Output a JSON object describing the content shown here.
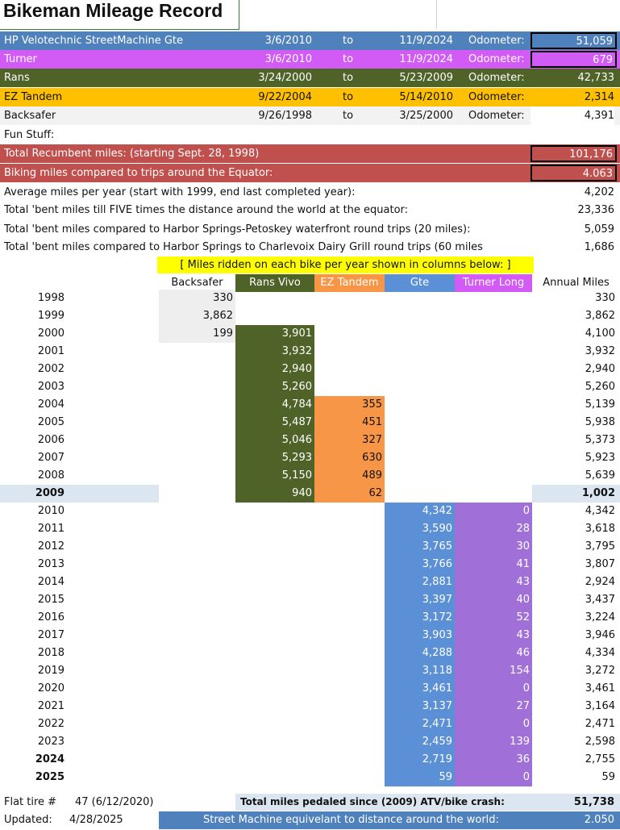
{
  "title": "Bikeman Mileage Record",
  "bikes": [
    {
      "name": "HP Velotechnic StreetMachine Gte",
      "start": "3/6/2010",
      "to": "to",
      "end": "11/9/2024",
      "odo_label": "Odometer:",
      "odo": "51,059",
      "bg": "#4f81bd",
      "odo_bg": "#4f81bd",
      "fg": "#ffffff"
    },
    {
      "name": "Turner",
      "start": "3/6/2010",
      "to": "to",
      "end": "11/9/2024",
      "odo_label": "Odometer:",
      "odo": "679",
      "bg": "#d35bf5",
      "odo_bg": "#d35bf5",
      "fg": "#ffffff"
    },
    {
      "name": "Rans",
      "start": "3/24/2000",
      "to": "to",
      "end": "5/23/2009",
      "odo_label": "Odometer:",
      "odo": "42,733",
      "bg": "#4f6228",
      "odo_bg": "#4f6228",
      "fg": "#ffffff"
    },
    {
      "name": "EZ Tandem",
      "start": "9/22/2004",
      "to": "to",
      "end": "5/14/2010",
      "odo_label": "Odometer:",
      "odo": "2,314",
      "bg": "#ffc000",
      "odo_bg": "#ffc000",
      "fg": "#111111"
    },
    {
      "name": "Backsafer",
      "start": "9/26/1998",
      "to": "to",
      "end": "3/25/2000",
      "odo_label": "Odometer:",
      "odo": "4,391",
      "bg": "#f2f2f2",
      "odo_bg": "#ffffff",
      "fg": "#111111"
    }
  ],
  "fun_stuff": "Fun Stuff:",
  "totals_red": [
    {
      "label": "Total Recumbent miles: (starting Sept. 28, 1998)",
      "value": "101,176"
    },
    {
      "label": "Biking miles compared to trips around the Equator:",
      "value": "4.063"
    }
  ],
  "stats": [
    {
      "label": "Average miles per year (start with 1999, end last completed year):",
      "value": "4,202"
    },
    {
      "label": "Total 'bent miles till FIVE times the distance around the world at the equator:",
      "value": "23,336"
    },
    {
      "label": "Total 'bent miles compared to Harbor Springs-Petoskey waterfront round trips (20 miles):",
      "value": "5,059"
    },
    {
      "label": "Total 'bent miles compared to Harbor Springs to Charlevoix Dairy Grill round trips (60 miles",
      "value": "1,686"
    }
  ],
  "banner": "[ Miles ridden on each bike per year shown in columns below: ]",
  "headers": [
    "Backsafer",
    "Rans Vivo",
    "EZ Tandem",
    "Gte",
    "Turner Long",
    "Annual Miles"
  ],
  "colors": {
    "backsafer": "#eeeeee",
    "rans": "#4f6228",
    "ez": "#f79646",
    "gte": "#5b8fd6",
    "turner": "#a070d8",
    "red": "#c0504d",
    "yellow": "#ffff00",
    "highlight": "#dce6f1"
  },
  "years": [
    {
      "year": "1998",
      "backsafer": "330",
      "rans": "",
      "ez": "",
      "gte": "",
      "turner": "",
      "annual": "330",
      "bold": false
    },
    {
      "year": "1999",
      "backsafer": "3,862",
      "rans": "",
      "ez": "",
      "gte": "",
      "turner": "",
      "annual": "3,862",
      "bold": false
    },
    {
      "year": "2000",
      "backsafer": "199",
      "rans": "3,901",
      "ez": "",
      "gte": "",
      "turner": "",
      "annual": "4,100",
      "bold": false
    },
    {
      "year": "2001",
      "backsafer": "",
      "rans": "3,932",
      "ez": "",
      "gte": "",
      "turner": "",
      "annual": "3,932",
      "bold": false
    },
    {
      "year": "2002",
      "backsafer": "",
      "rans": "2,940",
      "ez": "",
      "gte": "",
      "turner": "",
      "annual": "2,940",
      "bold": false
    },
    {
      "year": "2003",
      "backsafer": "",
      "rans": "5,260",
      "ez": "",
      "gte": "",
      "turner": "",
      "annual": "5,260",
      "bold": false
    },
    {
      "year": "2004",
      "backsafer": "",
      "rans": "4,784",
      "ez": "355",
      "gte": "",
      "turner": "",
      "annual": "5,139",
      "bold": false
    },
    {
      "year": "2005",
      "backsafer": "",
      "rans": "5,487",
      "ez": "451",
      "gte": "",
      "turner": "",
      "annual": "5,938",
      "bold": false
    },
    {
      "year": "2006",
      "backsafer": "",
      "rans": "5,046",
      "ez": "327",
      "gte": "",
      "turner": "",
      "annual": "5,373",
      "bold": false
    },
    {
      "year": "2007",
      "backsafer": "",
      "rans": "5,293",
      "ez": "630",
      "gte": "",
      "turner": "",
      "annual": "5,923",
      "bold": false
    },
    {
      "year": "2008",
      "backsafer": "",
      "rans": "5,150",
      "ez": "489",
      "gte": "",
      "turner": "",
      "annual": "5,639",
      "bold": false
    },
    {
      "year": "2009",
      "backsafer": "",
      "rans": "940",
      "ez": "62",
      "gte": "",
      "turner": "",
      "annual": "1,002",
      "bold": true
    },
    {
      "year": "2010",
      "backsafer": "",
      "rans": "",
      "ez": "",
      "gte": "4,342",
      "turner": "0",
      "annual": "4,342",
      "bold": false
    },
    {
      "year": "2011",
      "backsafer": "",
      "rans": "",
      "ez": "",
      "gte": "3,590",
      "turner": "28",
      "annual": "3,618",
      "bold": false
    },
    {
      "year": "2012",
      "backsafer": "",
      "rans": "",
      "ez": "",
      "gte": "3,765",
      "turner": "30",
      "annual": "3,795",
      "bold": false
    },
    {
      "year": "2013",
      "backsafer": "",
      "rans": "",
      "ez": "",
      "gte": "3,766",
      "turner": "41",
      "annual": "3,807",
      "bold": false
    },
    {
      "year": "2014",
      "backsafer": "",
      "rans": "",
      "ez": "",
      "gte": "2,881",
      "turner": "43",
      "annual": "2,924",
      "bold": false
    },
    {
      "year": "2015",
      "backsafer": "",
      "rans": "",
      "ez": "",
      "gte": "3,397",
      "turner": "40",
      "annual": "3,437",
      "bold": false
    },
    {
      "year": "2016",
      "backsafer": "",
      "rans": "",
      "ez": "",
      "gte": "3,172",
      "turner": "52",
      "annual": "3,224",
      "bold": false
    },
    {
      "year": "2017",
      "backsafer": "",
      "rans": "",
      "ez": "",
      "gte": "3,903",
      "turner": "43",
      "annual": "3,946",
      "bold": false
    },
    {
      "year": "2018",
      "backsafer": "",
      "rans": "",
      "ez": "",
      "gte": "4,288",
      "turner": "46",
      "annual": "4,334",
      "bold": false
    },
    {
      "year": "2019",
      "backsafer": "",
      "rans": "",
      "ez": "",
      "gte": "3,118",
      "turner": "154",
      "annual": "3,272",
      "bold": false
    },
    {
      "year": "2020",
      "backsafer": "",
      "rans": "",
      "ez": "",
      "gte": "3,461",
      "turner": "0",
      "annual": "3,461",
      "bold": false
    },
    {
      "year": "2021",
      "backsafer": "",
      "rans": "",
      "ez": "",
      "gte": "3,137",
      "turner": "27",
      "annual": "3,164",
      "bold": false
    },
    {
      "year": "2022",
      "backsafer": "",
      "rans": "",
      "ez": "",
      "gte": "2,471",
      "turner": "0",
      "annual": "2,471",
      "bold": false
    },
    {
      "year": "2023",
      "backsafer": "",
      "rans": "",
      "ez": "",
      "gte": "2,459",
      "turner": "139",
      "annual": "2,598",
      "bold": false
    },
    {
      "year": "2024",
      "backsafer": "",
      "rans": "",
      "ez": "",
      "gte": "2,719",
      "turner": "36",
      "annual": "2,755",
      "bold": true
    },
    {
      "year": "2025",
      "backsafer": "",
      "rans": "",
      "ez": "",
      "gte": "59",
      "turner": "0",
      "annual": "59",
      "bold": true
    }
  ],
  "footer": {
    "flat_label": "Flat tire #",
    "flat_value": "47 (6/12/2020)",
    "crash_label": "Total miles pedaled since (2009) ATV/bike crash:",
    "crash_value": "51,738",
    "updated_label": "Updated:",
    "updated_value": "4/28/2025",
    "sm_label": "Street Machine equivelant to distance around the world:",
    "sm_value": "2.050"
  }
}
